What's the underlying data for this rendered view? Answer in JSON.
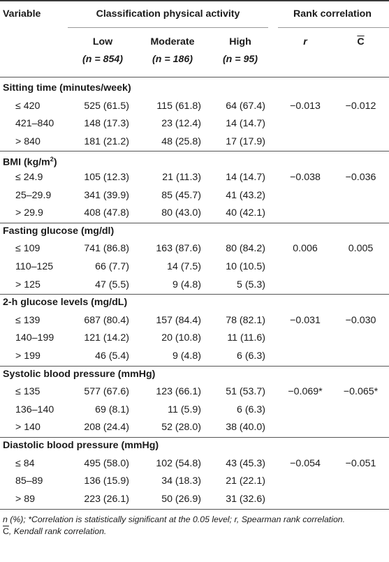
{
  "header": {
    "variable": "Variable",
    "classification": "Classification physical activity",
    "rank_correlation": "Rank correlation",
    "low": "Low",
    "low_n": "(n = 854)",
    "moderate": "Moderate",
    "moderate_n": "(n = 186)",
    "high": "High",
    "high_n": "(n = 95)",
    "r": "r",
    "c": "C"
  },
  "sections": [
    {
      "title": "Sitting time (minutes/week)",
      "rows": [
        {
          "label": "≤ 420",
          "low": "525 (61.5)",
          "moderate": "115 (61.8)",
          "high": "64 (67.4)",
          "r": "−0.013",
          "c": "−0.012"
        },
        {
          "label": "421–840",
          "low": "148 (17.3)",
          "moderate": "23 (12.4)",
          "high": "14 (14.7)",
          "r": "",
          "c": ""
        },
        {
          "label": "> 840",
          "low": "181 (21.2)",
          "moderate": "48 (25.8)",
          "high": "17 (17.9)",
          "r": "",
          "c": ""
        }
      ]
    },
    {
      "title": "BMI (kg/m",
      "title_sup": "2",
      "title_end": ")",
      "rows": [
        {
          "label": "≤ 24.9",
          "low": "105 (12.3)",
          "moderate": "21 (11.3)",
          "high": "14 (14.7)",
          "r": "−0.038",
          "c": "−0.036"
        },
        {
          "label": "25–29.9",
          "low": "341 (39.9)",
          "moderate": "85 (45.7)",
          "high": "41 (43.2)",
          "r": "",
          "c": ""
        },
        {
          "label": "> 29.9",
          "low": "408 (47.8)",
          "moderate": "80 (43.0)",
          "high": "40 (42.1)",
          "r": "",
          "c": ""
        }
      ]
    },
    {
      "title": "Fasting glucose (mg/dl)",
      "rows": [
        {
          "label": "≤ 109",
          "low": "741 (86.8)",
          "moderate": "163 (87.6)",
          "high": "80 (84.2)",
          "r": "0.006",
          "c": "0.005"
        },
        {
          "label": "110–125",
          "low": "66 (7.7)",
          "moderate": "14 (7.5)",
          "high": "10 (10.5)",
          "r": "",
          "c": ""
        },
        {
          "label": "> 125",
          "low": "47 (5.5)",
          "moderate": "9 (4.8)",
          "high": "5 (5.3)",
          "r": "",
          "c": ""
        }
      ]
    },
    {
      "title": "2-h glucose levels (mg/dL)",
      "rows": [
        {
          "label": "≤ 139",
          "low": "687 (80.4)",
          "moderate": "157 (84.4)",
          "high": "78 (82.1)",
          "r": "−0.031",
          "c": "−0.030"
        },
        {
          "label": "140–199",
          "low": "121 (14.2)",
          "moderate": "20 (10.8)",
          "high": "11 (11.6)",
          "r": "",
          "c": ""
        },
        {
          "label": "> 199",
          "low": "46 (5.4)",
          "moderate": "9 (4.8)",
          "high": "6 (6.3)",
          "r": "",
          "c": ""
        }
      ]
    },
    {
      "title": "Systolic blood pressure (mmHg)",
      "rows": [
        {
          "label": "≤ 135",
          "low": "577 (67.6)",
          "moderate": "123 (66.1)",
          "high": "51 (53.7)",
          "r": "−0.069*",
          "c": "−0.065*"
        },
        {
          "label": "136–140",
          "low": "69 (8.1)",
          "moderate": "11 (5.9)",
          "high": "6 (6.3)",
          "r": "",
          "c": ""
        },
        {
          "label": "> 140",
          "low": "208 (24.4)",
          "moderate": "52 (28.0)",
          "high": "38 (40.0)",
          "r": "",
          "c": ""
        }
      ]
    },
    {
      "title": "Diastolic blood pressure (mmHg)",
      "rows": [
        {
          "label": "≤ 84",
          "low": "495 (58.0)",
          "moderate": "102 (54.8)",
          "high": "43 (45.3)",
          "r": "−0.054",
          "c": "−0.051"
        },
        {
          "label": "85–89",
          "low": "136 (15.9)",
          "moderate": "34 (18.3)",
          "high": "21 (22.1)",
          "r": "",
          "c": ""
        },
        {
          "label": "> 89",
          "low": "223 (26.1)",
          "moderate": "50 (26.9)",
          "high": "31 (32.6)",
          "r": "",
          "c": ""
        }
      ]
    }
  ],
  "footnote": {
    "line1": "n (%); *Correlation is statistically significant at the 0.05 level; r, Spearman rank correlation.",
    "c_symbol": "C",
    "line2": ", Kendall rank correlation."
  }
}
